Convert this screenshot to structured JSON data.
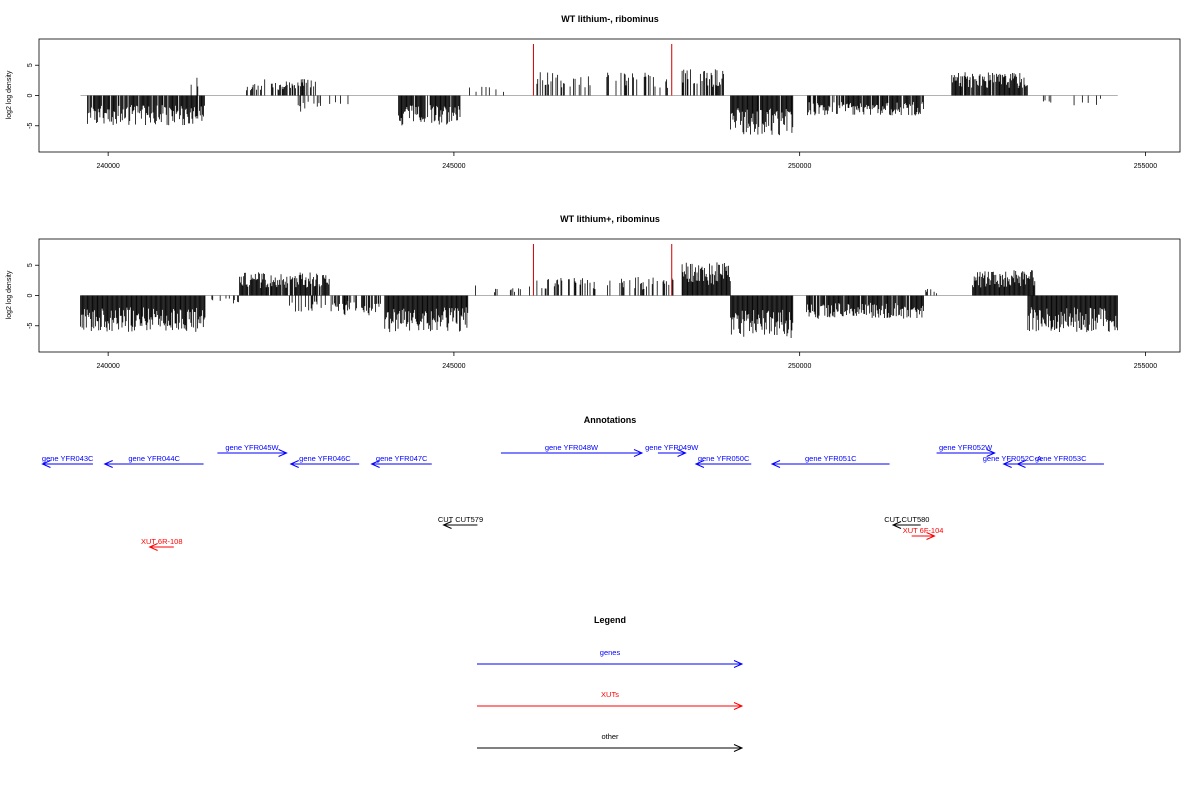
{
  "chart_data": [
    {
      "type": "bar",
      "title": "WT lithium-, ribominus",
      "ylabel": "log2 log density",
      "xlim": [
        239000,
        255500
      ],
      "ylim": [
        -9,
        9
      ],
      "x_ticks": [
        "240000",
        "245000",
        "250000",
        "255000"
      ],
      "y_ticks": [
        "-5",
        "0",
        "5"
      ],
      "baseline": {
        "from": 239600,
        "to": 254600
      },
      "highlight_lines": {
        "color": "#cc0000",
        "x": [
          246150,
          248150
        ],
        "y": 8.5
      },
      "bar_color": "#000000",
      "segments": [
        {
          "from": 239700,
          "to": 241400,
          "sign": -1,
          "amp": 4.5,
          "density": 0.9
        },
        {
          "from": 241200,
          "to": 241300,
          "sign": 1,
          "amp": 3.0,
          "density": 0.3
        },
        {
          "from": 242000,
          "to": 243000,
          "sign": 1,
          "amp": 2.5,
          "density": 0.5
        },
        {
          "from": 242700,
          "to": 243500,
          "sign": -1,
          "amp": 2.5,
          "density": 0.2
        },
        {
          "from": 244200,
          "to": 245100,
          "sign": -1,
          "amp": 4.5,
          "density": 0.9
        },
        {
          "from": 245200,
          "to": 245800,
          "sign": 1,
          "amp": 1.5,
          "density": 0.15
        },
        {
          "from": 246200,
          "to": 247000,
          "sign": 1,
          "amp": 3.5,
          "density": 0.35
        },
        {
          "from": 247200,
          "to": 248100,
          "sign": 1,
          "amp": 3.5,
          "density": 0.35
        },
        {
          "from": 248300,
          "to": 248900,
          "sign": 1,
          "amp": 4.0,
          "density": 0.6
        },
        {
          "from": 249000,
          "to": 249900,
          "sign": -1,
          "amp": 6.0,
          "density": 0.95
        },
        {
          "from": 250100,
          "to": 251800,
          "sign": -1,
          "amp": 3.0,
          "density": 0.8
        },
        {
          "from": 252200,
          "to": 253300,
          "sign": 1,
          "amp": 3.5,
          "density": 0.9
        },
        {
          "from": 253500,
          "to": 254400,
          "sign": -1,
          "amp": 1.5,
          "density": 0.1
        }
      ]
    },
    {
      "type": "bar",
      "title": "WT lithium+, ribominus",
      "ylabel": "log2 log density",
      "xlim": [
        239000,
        255500
      ],
      "ylim": [
        -9,
        9
      ],
      "x_ticks": [
        "240000",
        "245000",
        "250000",
        "255000"
      ],
      "y_ticks": [
        "-5",
        "0",
        "5"
      ],
      "baseline": {
        "from": 239600,
        "to": 254600
      },
      "highlight_lines": {
        "color": "#cc0000",
        "x": [
          246150,
          248150
        ],
        "y": 8.5
      },
      "bar_color": "#000000",
      "segments": [
        {
          "from": 239600,
          "to": 241400,
          "sign": -1,
          "amp": 5.5,
          "density": 1.0
        },
        {
          "from": 241500,
          "to": 241900,
          "sign": -1,
          "amp": 1.2,
          "density": 0.2
        },
        {
          "from": 241900,
          "to": 243200,
          "sign": 1,
          "amp": 3.5,
          "density": 0.9
        },
        {
          "from": 242600,
          "to": 243500,
          "sign": -1,
          "amp": 2.5,
          "density": 0.4
        },
        {
          "from": 243400,
          "to": 244000,
          "sign": -1,
          "amp": 3.0,
          "density": 0.4
        },
        {
          "from": 244000,
          "to": 245200,
          "sign": -1,
          "amp": 5.5,
          "density": 1.0
        },
        {
          "from": 245300,
          "to": 246100,
          "sign": 1,
          "amp": 1.5,
          "density": 0.25
        },
        {
          "from": 246200,
          "to": 248200,
          "sign": 1,
          "amp": 2.8,
          "density": 0.4
        },
        {
          "from": 248300,
          "to": 249000,
          "sign": 1,
          "amp": 5.0,
          "density": 1.0
        },
        {
          "from": 249000,
          "to": 249900,
          "sign": -1,
          "amp": 6.5,
          "density": 1.0
        },
        {
          "from": 250100,
          "to": 251800,
          "sign": -1,
          "amp": 3.5,
          "density": 0.9
        },
        {
          "from": 251800,
          "to": 252000,
          "sign": 1,
          "amp": 1.0,
          "density": 0.3
        },
        {
          "from": 252500,
          "to": 253400,
          "sign": 1,
          "amp": 3.8,
          "density": 1.0
        },
        {
          "from": 253300,
          "to": 254600,
          "sign": -1,
          "amp": 5.5,
          "density": 1.0
        }
      ]
    }
  ],
  "annotations": {
    "title": "Annotations",
    "xlim": [
      239000,
      255500
    ],
    "features": [
      {
        "label": "gene YFR043C",
        "kind": "gene",
        "strand": "-",
        "start": 239050,
        "end": 239780,
        "row": 1
      },
      {
        "label": "gene YFR044C",
        "kind": "gene",
        "strand": "-",
        "start": 239950,
        "end": 241380,
        "row": 1
      },
      {
        "label": "gene YFR045W",
        "kind": "gene",
        "strand": "+",
        "start": 241580,
        "end": 242580,
        "row": 0
      },
      {
        "label": "gene YFR046C",
        "kind": "gene",
        "strand": "-",
        "start": 242640,
        "end": 243630,
        "row": 1
      },
      {
        "label": "gene YFR047C",
        "kind": "gene",
        "strand": "-",
        "start": 243810,
        "end": 244680,
        "row": 1
      },
      {
        "label": "gene YFR048W",
        "kind": "gene",
        "strand": "+",
        "start": 245680,
        "end": 247720,
        "row": 0
      },
      {
        "label": "gene YFR049W",
        "kind": "gene",
        "strand": "+",
        "start": 247950,
        "end": 248350,
        "row": 0
      },
      {
        "label": "gene YFR050C",
        "kind": "gene",
        "strand": "-",
        "start": 248500,
        "end": 249300,
        "row": 1
      },
      {
        "label": "gene YFR051C",
        "kind": "gene",
        "strand": "-",
        "start": 249600,
        "end": 251300,
        "row": 1
      },
      {
        "label": "gene YFR052W",
        "kind": "gene",
        "strand": "+",
        "start": 251980,
        "end": 252820,
        "row": 0
      },
      {
        "label": "gene YFR052C-A",
        "kind": "gene",
        "strand": "-",
        "start": 252950,
        "end": 253200,
        "row": 1
      },
      {
        "label": "gene YFR053C",
        "kind": "gene",
        "strand": "-",
        "start": 253150,
        "end": 254400,
        "row": 1
      },
      {
        "label": "CUT CUT579",
        "kind": "other",
        "strand": "-",
        "start": 244850,
        "end": 245340,
        "row": 2
      },
      {
        "label": "CUT CUT580",
        "kind": "other",
        "strand": "-",
        "start": 251350,
        "end": 251750,
        "row": 2
      },
      {
        "label": "XUT 6R-108",
        "kind": "xut",
        "strand": "-",
        "start": 240600,
        "end": 240950,
        "row": 3
      },
      {
        "label": "XUT 6F-104",
        "kind": "xut",
        "strand": "+",
        "start": 251620,
        "end": 251950,
        "row": 2.5
      }
    ]
  },
  "legend": {
    "title": "Legend",
    "items": [
      {
        "label": "genes",
        "color": "#0000ff"
      },
      {
        "label": "XUTs",
        "color": "#ff0000"
      },
      {
        "label": "other",
        "color": "#000000"
      }
    ]
  },
  "colors": {
    "gene": "#0000ff",
    "xut": "#ff0000",
    "other": "#000000",
    "baseline": "#999999"
  }
}
